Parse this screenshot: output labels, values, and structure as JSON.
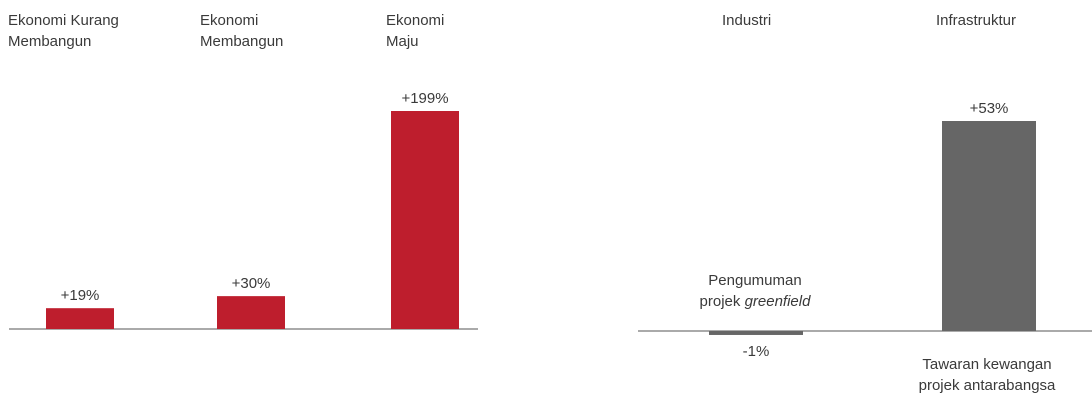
{
  "chart_data": [
    {
      "type": "bar",
      "categories": [
        [
          "Ekonomi Kurang",
          "Membangun"
        ],
        [
          "Ekonomi",
          "Membangun"
        ],
        [
          "Ekonomi",
          "Maju"
        ]
      ],
      "values": [
        19,
        30,
        199
      ],
      "value_labels": [
        "+19%",
        "+30%",
        "+199%"
      ],
      "unit": "%",
      "color": "#be1e2d"
    },
    {
      "type": "bar",
      "categories": [
        [
          "Industri"
        ],
        [
          "Infrastruktur"
        ]
      ],
      "values": [
        -1,
        53
      ],
      "value_labels": [
        "-1%",
        "+53%"
      ],
      "unit": "%",
      "color": "#666666",
      "annotations": [
        {
          "text_plain": "Pengumuman",
          "text_line2_prefix": "projek ",
          "text_line2_italic": "greenfield"
        },
        {
          "line1": "Tawaran kewangan",
          "line2": "projek antarabangsa"
        }
      ]
    }
  ]
}
